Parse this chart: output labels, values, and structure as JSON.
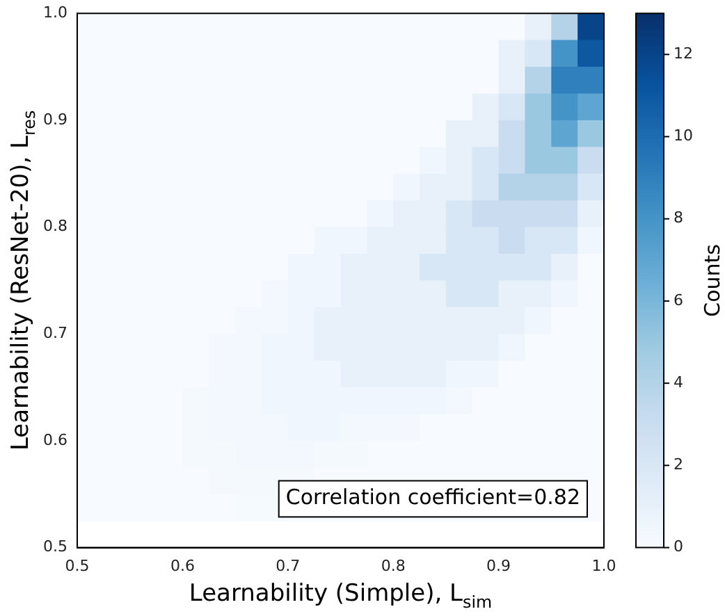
{
  "chart_data": {
    "type": "heatmap",
    "xlabel": "Learnability (Simple), L$_{sim}$",
    "ylabel": "Learnability (ResNet-20), L$_{res}$",
    "clabel": "Counts",
    "annotations": [
      "Correlation coefficient=0.82"
    ],
    "x": [
      0.5125,
      0.5375,
      0.5625,
      0.5875,
      0.6125,
      0.6375,
      0.6625,
      0.6875,
      0.7125,
      0.7375,
      0.7625,
      0.7875,
      0.8125,
      0.8375,
      0.8625,
      0.8875,
      0.9125,
      0.9375,
      0.9625,
      0.9875
    ],
    "y": [
      0.9875,
      0.9625,
      0.9375,
      0.9125,
      0.8875,
      0.8625,
      0.8375,
      0.8125,
      0.7875,
      0.7625,
      0.7375,
      0.7125,
      0.6875,
      0.6625,
      0.6375,
      0.6125,
      0.5875,
      0.5625,
      0.5375
    ],
    "cells": [
      [
        0,
        0,
        0,
        0,
        0,
        0,
        0,
        0,
        0,
        0,
        0,
        0,
        0,
        0,
        0,
        0,
        0,
        1,
        4,
        12
      ],
      [
        0,
        0,
        0,
        0,
        0,
        0,
        0,
        0,
        0,
        0,
        0,
        0,
        0,
        0,
        0,
        0,
        1,
        2,
        8,
        11
      ],
      [
        0,
        0,
        0,
        0,
        0,
        0,
        0,
        0,
        0,
        0,
        0,
        0,
        0,
        0,
        0,
        0,
        1,
        4,
        9,
        9
      ],
      [
        0,
        0,
        0,
        0,
        0,
        0,
        0,
        0,
        0,
        0,
        0,
        0,
        0,
        0,
        0,
        1,
        2,
        5,
        8,
        7
      ],
      [
        0,
        0,
        0,
        0,
        0,
        0,
        0,
        0,
        0,
        0,
        0,
        0,
        0,
        0,
        1,
        1,
        3,
        5,
        7,
        5
      ],
      [
        0,
        0,
        0,
        0,
        0,
        0,
        0,
        0,
        0,
        0,
        0,
        0,
        0,
        0.5,
        1,
        2,
        3,
        5,
        5,
        3
      ],
      [
        0,
        0,
        0,
        0,
        0,
        0,
        0,
        0,
        0,
        0,
        0,
        0,
        0.5,
        1,
        1,
        2,
        4,
        4,
        4,
        2
      ],
      [
        0,
        0,
        0,
        0,
        0,
        0,
        0,
        0,
        0,
        0,
        0,
        0.5,
        1,
        1,
        2,
        3,
        3,
        3,
        3,
        1
      ],
      [
        0,
        0,
        0,
        0,
        0,
        0,
        0,
        0,
        0,
        0.5,
        0.5,
        1,
        1,
        1,
        2,
        2,
        3,
        2,
        2,
        0.5
      ],
      [
        0,
        0,
        0,
        0,
        0,
        0,
        0,
        0,
        0.5,
        0.5,
        1,
        1,
        1,
        2,
        2,
        2,
        2,
        2,
        1,
        0
      ],
      [
        0,
        0,
        0,
        0,
        0,
        0,
        0,
        0.3,
        0.5,
        0.5,
        1,
        1,
        1,
        1,
        2,
        2,
        1,
        1,
        0.5,
        0
      ],
      [
        0,
        0,
        0,
        0,
        0,
        0,
        0.3,
        0.3,
        0.5,
        1,
        1,
        1,
        1,
        1,
        1,
        1,
        1,
        0.5,
        0,
        0
      ],
      [
        0,
        0,
        0,
        0,
        0,
        0.3,
        0.3,
        0.5,
        0.5,
        1,
        1,
        1,
        1,
        1,
        1,
        1,
        0.5,
        0,
        0,
        0
      ],
      [
        0,
        0,
        0,
        0,
        0,
        0.3,
        0.3,
        0.5,
        0.5,
        0.5,
        1,
        1,
        1,
        1,
        0.5,
        0.5,
        0,
        0,
        0,
        0
      ],
      [
        0,
        0,
        0,
        0,
        0.2,
        0.3,
        0.3,
        0.5,
        0.5,
        0.5,
        0.5,
        0.5,
        0.5,
        0.5,
        0.3,
        0,
        0,
        0,
        0,
        0
      ],
      [
        0,
        0,
        0,
        0,
        0.2,
        0.3,
        0.3,
        0.3,
        0.5,
        0.5,
        0.3,
        0.3,
        0.3,
        0,
        0,
        0,
        0,
        0,
        0,
        0
      ],
      [
        0,
        0,
        0,
        0,
        0.2,
        0.2,
        0.3,
        0.3,
        0.3,
        0.2,
        0.2,
        0,
        0,
        0,
        0,
        0,
        0,
        0,
        0,
        0
      ],
      [
        0,
        0,
        0,
        0,
        0,
        0.2,
        0.2,
        0.2,
        0.2,
        0,
        0,
        0,
        0,
        0,
        0,
        0,
        0,
        0,
        0,
        0
      ],
      [
        0,
        0,
        0,
        0,
        0,
        0,
        0.1,
        0.1,
        0,
        0,
        0,
        0,
        0,
        0,
        0,
        0,
        0,
        0,
        0,
        0
      ]
    ],
    "clim": [
      0,
      13
    ],
    "cticks": [
      0,
      2,
      4,
      6,
      8,
      10,
      12
    ],
    "xlim": [
      0.5,
      1.0
    ],
    "ylim": [
      0.5,
      1.0
    ],
    "xticks": [
      {
        "value": 0.5,
        "label": "0.5"
      },
      {
        "value": 0.6,
        "label": "0.6"
      },
      {
        "value": 0.7,
        "label": "0.7"
      },
      {
        "value": 0.8,
        "label": "0.8"
      },
      {
        "value": 0.9,
        "label": "0.9"
      },
      {
        "value": 1.0,
        "label": "1.0"
      }
    ],
    "yticks": [
      {
        "value": 0.5,
        "label": "0.5"
      },
      {
        "value": 0.6,
        "label": "0.6"
      },
      {
        "value": 0.7,
        "label": "0.7"
      },
      {
        "value": 0.8,
        "label": "0.8"
      },
      {
        "value": 0.9,
        "label": "0.9"
      },
      {
        "value": 1.0,
        "label": "1.0"
      }
    ]
  }
}
